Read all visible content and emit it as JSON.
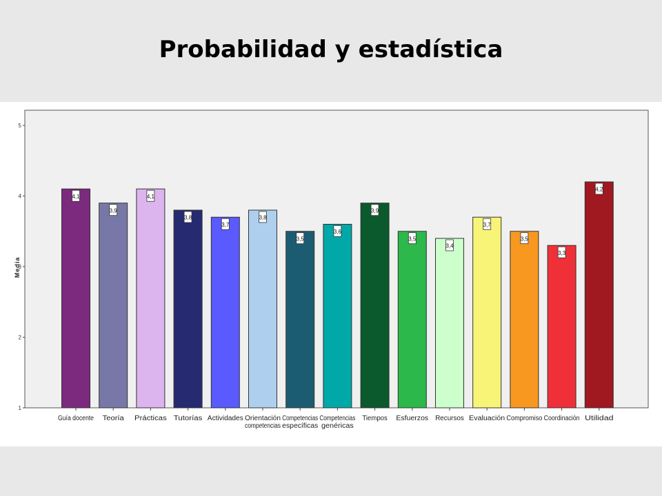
{
  "slide": {
    "title": "Probabilidad  y estadística"
  },
  "chart_data": {
    "type": "bar",
    "title": "",
    "xlabel": "",
    "ylabel": "Media",
    "ylim": [
      1,
      5
    ],
    "yticks": [
      "1",
      "2",
      "3",
      "4",
      "5"
    ],
    "categories": [
      "Guía docente",
      "Teoría",
      "Prácticas",
      "Tutorías",
      "Actividades",
      "Orientación competencias",
      "Competencias específicas",
      "Competencias genéricas",
      "Tiempos",
      "Esfuerzos",
      "Recursos",
      "Evaluación",
      "Compromiso",
      "Coordinación",
      "Utilidad"
    ],
    "category_lines": [
      [
        "Guía docente"
      ],
      [
        "Teoría"
      ],
      [
        "Prácticas"
      ],
      [
        "Tutorías"
      ],
      [
        "Actividades"
      ],
      [
        "Orientación",
        "competencias"
      ],
      [
        "Competencias",
        "específicas"
      ],
      [
        "Competencias",
        "genéricas"
      ],
      [
        "Tiempos"
      ],
      [
        "Esfuerzos"
      ],
      [
        "Recursos"
      ],
      [
        "Evaluación"
      ],
      [
        "Compromiso"
      ],
      [
        "Coordinación"
      ],
      [
        "Utilidad"
      ]
    ],
    "values": [
      4.1,
      3.9,
      4.1,
      3.8,
      3.7,
      3.8,
      3.5,
      3.6,
      3.9,
      3.5,
      3.4,
      3.7,
      3.5,
      3.3,
      4.2
    ],
    "data_labels": [
      "4,1",
      "3,9",
      "4,1",
      "3,8",
      "3,7",
      "3,8",
      "3,5",
      "3,6",
      "3,9",
      "3,5",
      "3,4",
      "3,7",
      "3,5",
      "3,3",
      "4,2"
    ],
    "colors": [
      "#7b2a7d",
      "#7878a8",
      "#dcb4ee",
      "#262a70",
      "#5a5aff",
      "#aed0ee",
      "#1c5c72",
      "#00a8a8",
      "#0a5a2e",
      "#2cb84a",
      "#ccffcc",
      "#f8f478",
      "#f89820",
      "#f03038",
      "#a01820"
    ],
    "plot_background": "#f0f0f0",
    "grid": false,
    "legend": "none"
  }
}
